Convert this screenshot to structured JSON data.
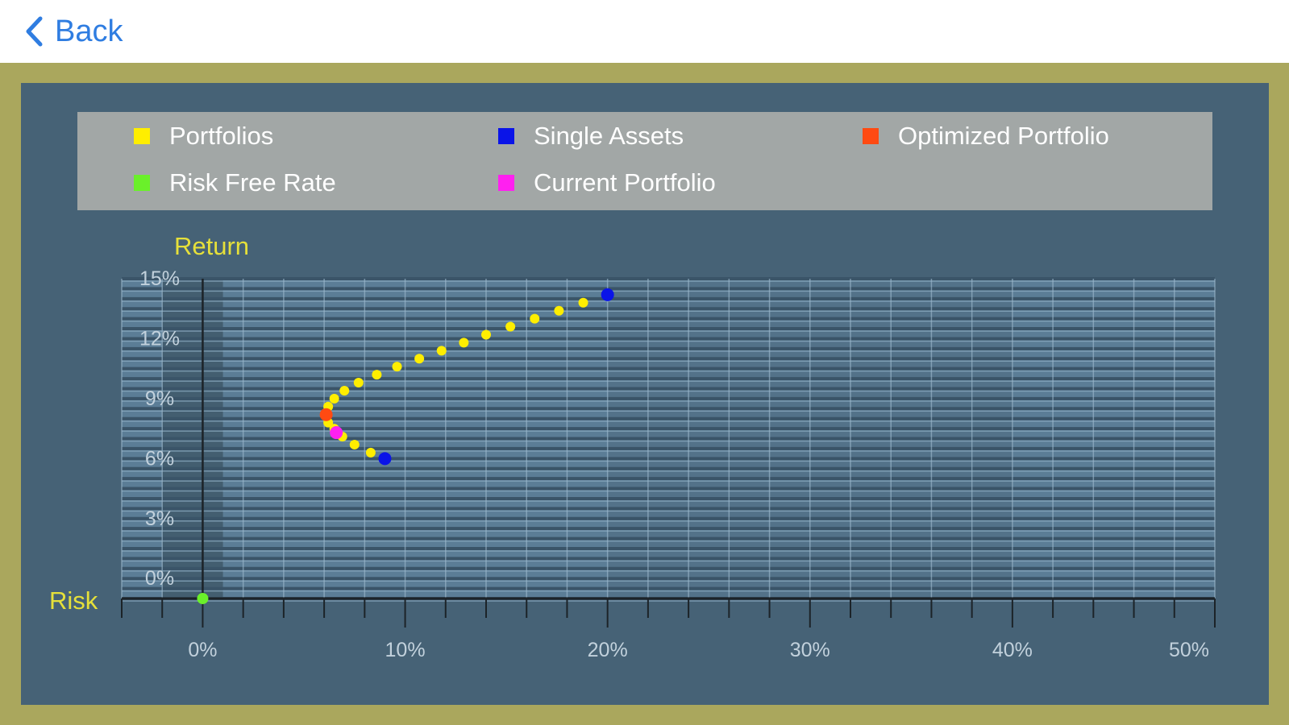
{
  "nav": {
    "back_label": "Back"
  },
  "colors": {
    "frame": "#aaa75d",
    "panel": "#466276",
    "legend_bg": "#a2a7a6",
    "nav_accent": "#2f7de1",
    "axis_label": "#e6e03a"
  },
  "legend": {
    "items": [
      {
        "label": "Portfolios",
        "color": "#ffee00"
      },
      {
        "label": "Single Assets",
        "color": "#0a14e8"
      },
      {
        "label": "Optimized Portfolio",
        "color": "#ff4a12"
      },
      {
        "label": "Risk Free Rate",
        "color": "#6af02a"
      },
      {
        "label": "Current Portfolio",
        "color": "#ff20f0"
      }
    ]
  },
  "chart_data": {
    "type": "scatter",
    "xlabel": "Risk",
    "ylabel": "Return",
    "xlim": [
      -4,
      50
    ],
    "ylim": [
      -1,
      15
    ],
    "x_ticks": [
      "0%",
      "10%",
      "20%",
      "30%",
      "40%",
      "50%"
    ],
    "y_ticks": [
      "0%",
      "3%",
      "6%",
      "9%",
      "12%",
      "15%"
    ],
    "grid": true,
    "legend_position": "top",
    "series": [
      {
        "name": "Portfolios",
        "color": "#ffee00",
        "points": [
          [
            9.0,
            6.0
          ],
          [
            8.3,
            6.3
          ],
          [
            7.5,
            6.7
          ],
          [
            6.9,
            7.1
          ],
          [
            6.5,
            7.5
          ],
          [
            6.2,
            7.8
          ],
          [
            6.1,
            8.2
          ],
          [
            6.2,
            8.6
          ],
          [
            6.5,
            9.0
          ],
          [
            7.0,
            9.4
          ],
          [
            7.7,
            9.8
          ],
          [
            8.6,
            10.2
          ],
          [
            9.6,
            10.6
          ],
          [
            10.7,
            11.0
          ],
          [
            11.8,
            11.4
          ],
          [
            12.9,
            11.8
          ],
          [
            14.0,
            12.2
          ],
          [
            15.2,
            12.6
          ],
          [
            16.4,
            13.0
          ],
          [
            17.6,
            13.4
          ],
          [
            18.8,
            13.8
          ],
          [
            20.0,
            14.2
          ]
        ]
      },
      {
        "name": "Single Assets",
        "color": "#0a14e8",
        "points": [
          [
            9.0,
            6.0
          ],
          [
            20.0,
            14.2
          ]
        ]
      },
      {
        "name": "Optimized Portfolio",
        "color": "#ff4a12",
        "points": [
          [
            6.1,
            8.2
          ]
        ]
      },
      {
        "name": "Current Portfolio",
        "color": "#ff20f0",
        "points": [
          [
            6.6,
            7.3
          ]
        ]
      },
      {
        "name": "Risk Free Rate",
        "color": "#6af02a",
        "points": [
          [
            0.0,
            -1.0
          ]
        ]
      }
    ]
  }
}
